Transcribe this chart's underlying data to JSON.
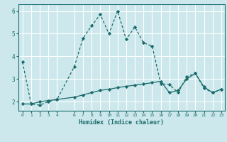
{
  "xlabel": "Humidex (Indice chaleur)",
  "bg_color": "#cce8ec",
  "line_color": "#1a6b6b",
  "grid_color": "#ffffff",
  "xlim": [
    -0.5,
    23.4
  ],
  "ylim": [
    1.6,
    6.3
  ],
  "xticks": [
    0,
    1,
    2,
    3,
    4,
    6,
    7,
    8,
    9,
    10,
    11,
    12,
    13,
    14,
    15,
    16,
    17,
    18,
    19,
    20,
    21,
    22,
    23
  ],
  "yticks": [
    2,
    3,
    4,
    5,
    6
  ],
  "line1_x": [
    0,
    1,
    2,
    3,
    4,
    6,
    7,
    8,
    9,
    10,
    11,
    12,
    13,
    14,
    15,
    16,
    17,
    18,
    19,
    20,
    21,
    22,
    23
  ],
  "line1_y": [
    3.75,
    1.9,
    1.85,
    2.0,
    2.1,
    3.55,
    4.8,
    5.35,
    5.85,
    5.0,
    6.0,
    4.75,
    5.3,
    4.6,
    4.45,
    2.8,
    2.75,
    2.4,
    3.1,
    3.25,
    2.6,
    2.4,
    2.55
  ],
  "line2_x": [
    0,
    1,
    2,
    3,
    4,
    6,
    7,
    8,
    9,
    10,
    11,
    12,
    13,
    14,
    15,
    16,
    17,
    18,
    19,
    20,
    21,
    22,
    23
  ],
  "line2_y": [
    1.9,
    1.9,
    2.0,
    2.05,
    2.1,
    2.2,
    2.3,
    2.4,
    2.5,
    2.55,
    2.62,
    2.68,
    2.73,
    2.78,
    2.84,
    2.9,
    2.4,
    2.5,
    3.0,
    3.25,
    2.65,
    2.4,
    2.55
  ]
}
